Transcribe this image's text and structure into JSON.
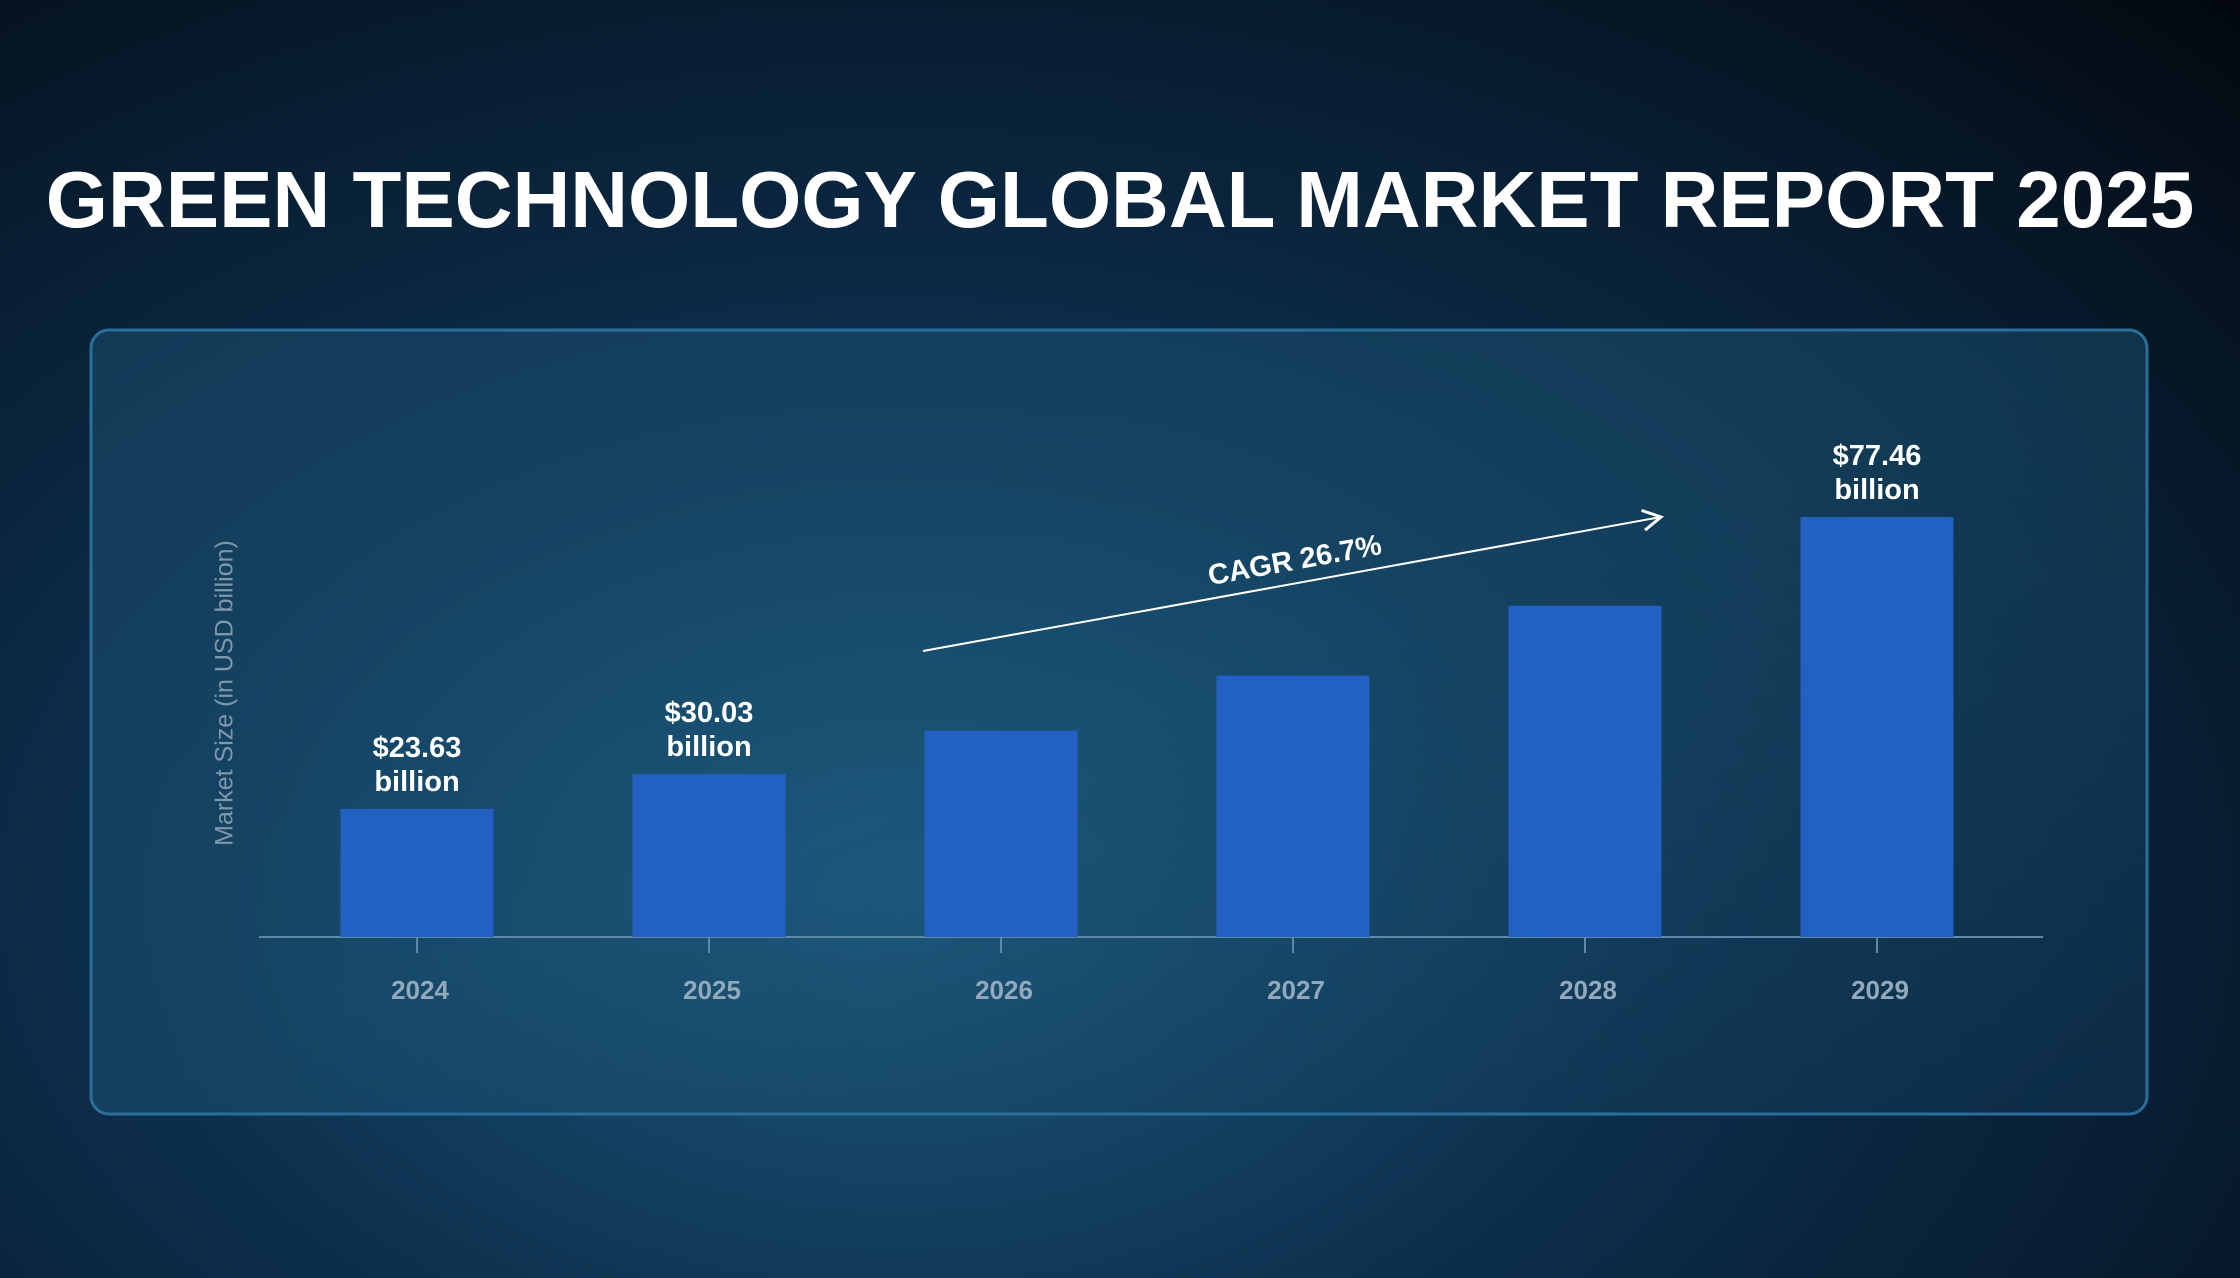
{
  "chart_data": {
    "type": "bar",
    "title": "GREEN TECHNOLOGY GLOBAL MARKET REPORT 2025",
    "y_label": "Market Size (in USD billion)",
    "annotation": "CAGR 26.7%",
    "categories": [
      "2024",
      "2025",
      "2026",
      "2027",
      "2028",
      "2029"
    ],
    "values": [
      23.63,
      30.03,
      38.05,
      48.2,
      61.1,
      77.46
    ],
    "value_labels": [
      "$23.63 billion",
      "$30.03 billion",
      null,
      null,
      null,
      "$77.46 billion"
    ],
    "color": "#2360c4"
  }
}
